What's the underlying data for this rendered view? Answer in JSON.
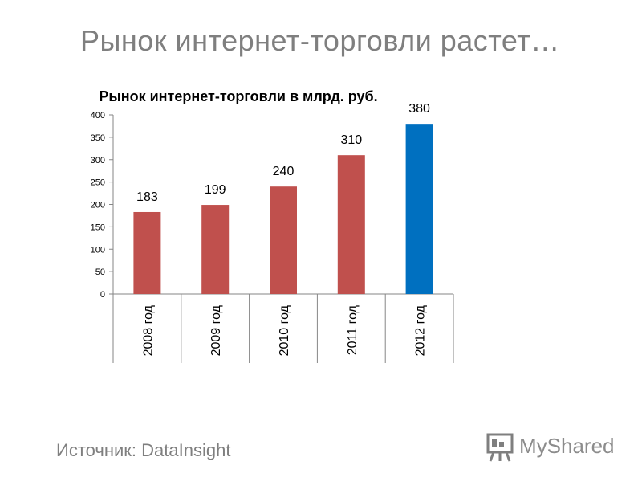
{
  "slide": {
    "title": "Рынок интернет-торговли растет…",
    "source": "Источник: DataInsight",
    "logo_text": "MyShared"
  },
  "chart_data": {
    "type": "bar",
    "title": "Рынок интернет-торговли в млрд. руб.",
    "categories": [
      "2008 год",
      "2009 год",
      "2010 год",
      "2011 год",
      "2012 год"
    ],
    "values": [
      183,
      199,
      240,
      310,
      380
    ],
    "data_labels": [
      "183",
      "199",
      "240",
      "310",
      "380"
    ],
    "bar_colors": [
      "#c0504d",
      "#c0504d",
      "#c0504d",
      "#c0504d",
      "#0070c0"
    ],
    "ylim": [
      0,
      400
    ],
    "yticks": [
      0,
      50,
      100,
      150,
      200,
      250,
      300,
      350,
      400
    ],
    "xlabel": "",
    "ylabel": "",
    "grid": false,
    "legend": "none"
  }
}
